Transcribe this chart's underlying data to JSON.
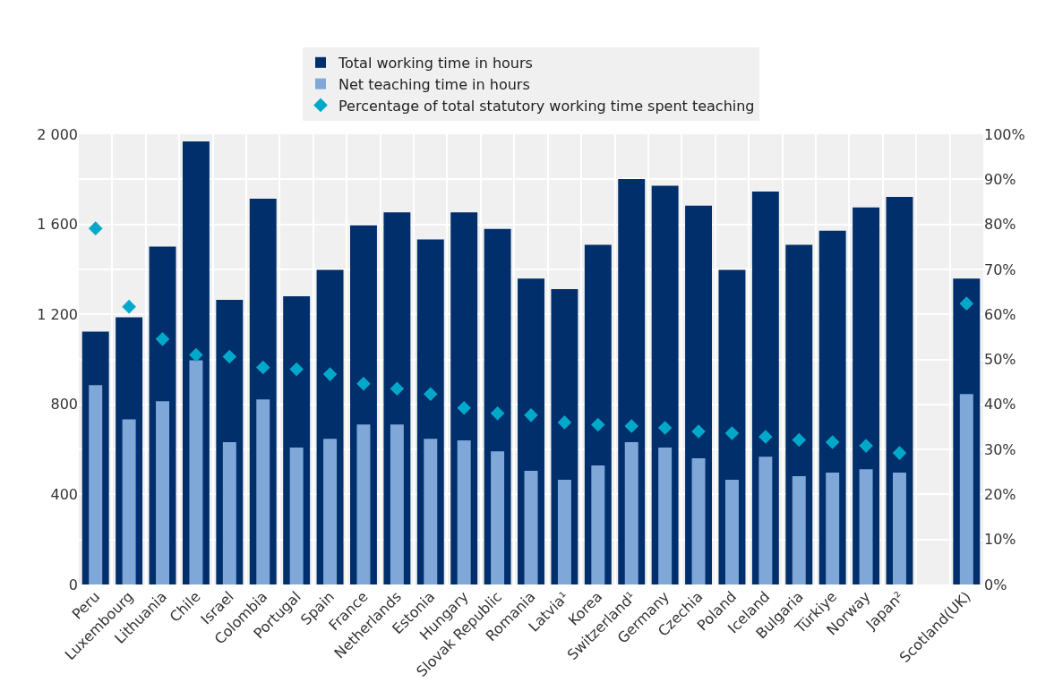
{
  "chart_data": {
    "type": "bar",
    "categories": [
      "Peru",
      "Luxembourg",
      "Lithuania",
      "Chile",
      "Israel",
      "Colombia",
      "Portugal",
      "Spain",
      "France",
      "Netherlands",
      "Estonia",
      "Hungary",
      "Slovak Republic",
      "Romania",
      "Latvia¹",
      "Korea",
      "Switzerland¹",
      "Germany",
      "Czechia",
      "Poland",
      "Iceland",
      "Bulgaria",
      "Türkiye",
      "Norway",
      "Japan²",
      null,
      "Scotland(UK)"
    ],
    "series": [
      {
        "name": "Total working time in hours",
        "color": "#002f6c",
        "values": [
          1123,
          1187,
          1501,
          1968,
          1264,
          1714,
          1280,
          1398,
          1595,
          1653,
          1533,
          1653,
          1580,
          1359,
          1312,
          1509,
          1801,
          1771,
          1683,
          1398,
          1746,
          1509,
          1572,
          1675,
          1722,
          null,
          1359
        ]
      },
      {
        "name": "Net teaching time in hours",
        "color": "#7fa8d9",
        "values": [
          886,
          734,
          814,
          996,
          632,
          822,
          608,
          647,
          711,
          711,
          647,
          640,
          591,
          505,
          465,
          529,
          632,
          608,
          561,
          465,
          568,
          481,
          497,
          512,
          497,
          null,
          846
        ]
      },
      {
        "name": "Percentage of total statutory working time spent teaching",
        "type": "scatter",
        "axis": "y2",
        "marker": "diamond",
        "color": "#00a9c9",
        "values": [
          79.1,
          61.7,
          54.5,
          51.0,
          50.6,
          48.2,
          47.8,
          46.7,
          44.6,
          43.5,
          42.3,
          39.2,
          38.0,
          37.6,
          36.0,
          35.5,
          35.2,
          34.8,
          34.0,
          33.6,
          32.8,
          32.1,
          31.6,
          30.8,
          29.2,
          null,
          62.4
        ]
      }
    ],
    "ylim": [
      0,
      2000
    ],
    "yticks": [
      0,
      400,
      800,
      {
        "value": 1200,
        "label": "1 200"
      },
      {
        "value": 1600,
        "label": "1 600"
      },
      {
        "value": 2000,
        "label": "2 000"
      }
    ],
    "y2lim": [
      0,
      100
    ],
    "y2ticks": [
      {
        "value": 0,
        "label": "0%"
      },
      {
        "value": 10,
        "label": "10%"
      },
      {
        "value": 20,
        "label": "20%"
      },
      {
        "value": 30,
        "label": "30%"
      },
      {
        "value": 40,
        "label": "40%"
      },
      {
        "value": 50,
        "label": "50%"
      },
      {
        "value": 60,
        "label": "60%"
      },
      {
        "value": 70,
        "label": "70%"
      },
      {
        "value": 80,
        "label": "80%"
      },
      {
        "value": 90,
        "label": "90%"
      },
      {
        "value": 100,
        "label": "100%"
      }
    ],
    "grid": true,
    "legend": "top"
  }
}
